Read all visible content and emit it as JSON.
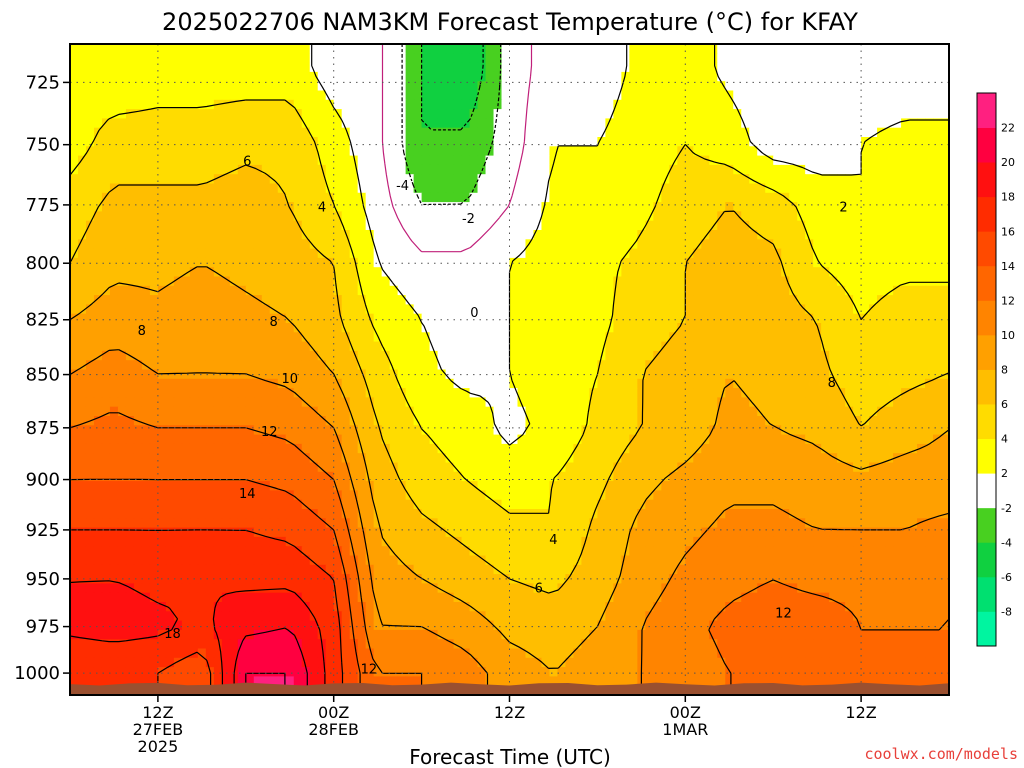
{
  "title": "2025022706 NAM3KM Forecast Temperature (°C) for KFAY",
  "credit": "coolwx.com/models",
  "colors": {
    "credit": "#e8403a",
    "ground": "#9a5030",
    "freezing_line": "#c0207a",
    "frame": "#000000",
    "grid": "#555555"
  },
  "chart_data": {
    "type": "heatmap",
    "title": "2025022706 NAM3KM Forecast Temperature (°C) for KFAY",
    "xlabel": "Forecast Time (UTC)",
    "ylabel": "",
    "x_units": "forecast hours from 2025-02-27 06Z",
    "xlim": [
      0,
      60
    ],
    "ylim": [
      1012,
      710
    ],
    "y_ticks": [
      725,
      750,
      775,
      800,
      825,
      850,
      875,
      900,
      925,
      950,
      975,
      1000
    ],
    "x_ticks": [
      {
        "hour": 6,
        "lines": [
          "12Z",
          "27FEB",
          "2025"
        ]
      },
      {
        "hour": 18,
        "lines": [
          "00Z",
          "28FEB"
        ]
      },
      {
        "hour": 30,
        "lines": [
          "12Z"
        ]
      },
      {
        "hour": 42,
        "lines": [
          "00Z",
          "1MAR"
        ]
      },
      {
        "hour": 54,
        "lines": [
          "12Z"
        ]
      }
    ],
    "grid": true,
    "colorbar": {
      "levels": [
        -10,
        -8,
        -6,
        -4,
        -2,
        2,
        4,
        6,
        8,
        10,
        12,
        14,
        16,
        18,
        20,
        22,
        24
      ],
      "labels": [
        "-8",
        "-6",
        "-4",
        "-2",
        "2",
        "4",
        "6",
        "8",
        "10",
        "12",
        "14",
        "16",
        "18",
        "20",
        "22"
      ],
      "colors": [
        "#00f5a0",
        "#00e070",
        "#10d040",
        "#48d020",
        "#ffffff",
        "#ffff00",
        "#ffdc00",
        "#ffbe00",
        "#ffa000",
        "#ff8400",
        "#ff6600",
        "#ff4a00",
        "#ff2c00",
        "#ff1010",
        "#ff0040",
        "#ff2080"
      ]
    },
    "pressure": [
      720,
      750,
      775,
      800,
      825,
      850,
      875,
      900,
      925,
      950,
      975,
      1000
    ],
    "hours": [
      0,
      3,
      6,
      9,
      12,
      15,
      18,
      21,
      24,
      27,
      30,
      33,
      36,
      39,
      42,
      45,
      48,
      51,
      54,
      57,
      60
    ],
    "temperature": [
      [
        3,
        2.5,
        3,
        3,
        3,
        3,
        1,
        0.5,
        -4,
        -6,
        -1,
        1,
        1,
        2.5,
        3,
        1.5,
        0.5,
        0.5,
        1,
        1,
        1
      ],
      [
        3,
        5,
        5,
        5,
        5.5,
        5.5,
        3,
        0.5,
        -4,
        -3.5,
        -1,
        2,
        2,
        3,
        4,
        3,
        1,
        1,
        2,
        2.5,
        2.5
      ],
      [
        5,
        6.5,
        6.5,
        6.5,
        7,
        6,
        4,
        1,
        -2,
        -2,
        0,
        2.5,
        2.5,
        3.5,
        5,
        6,
        5,
        3,
        2,
        3,
        3
      ],
      [
        6,
        7.5,
        7.5,
        8,
        7.5,
        7,
        6,
        2,
        0.5,
        0.5,
        2,
        3,
        3.5,
        4.5,
        6,
        7,
        6.5,
        4,
        3,
        3.5,
        3.5
      ],
      [
        8,
        9,
        8.5,
        9,
        8.5,
        8,
        6.5,
        3.5,
        2,
        1,
        2,
        3,
        3.5,
        5,
        6,
        7,
        7,
        6,
        4,
        5,
        5
      ],
      [
        10,
        11,
        10,
        10,
        10,
        9.5,
        8,
        5,
        2.5,
        1.5,
        2,
        3,
        4,
        6,
        7,
        8,
        7.5,
        6.5,
        5,
        5.5,
        6
      ],
      [
        12,
        12.5,
        12,
        12,
        12,
        11.5,
        10,
        6,
        4,
        3,
        1.5,
        2.5,
        4.5,
        6,
        7,
        8.5,
        8,
        7.5,
        6,
        7,
        8
      ],
      [
        14,
        14,
        14,
        14,
        14,
        13.5,
        12,
        7,
        5,
        4,
        3,
        4,
        5.5,
        7.5,
        8.5,
        9.5,
        9.5,
        9,
        8.5,
        9,
        9
      ],
      [
        16,
        16,
        16,
        16,
        16,
        15.5,
        14,
        8,
        6.5,
        5.5,
        4.5,
        4,
        6.5,
        8.5,
        9.5,
        10.5,
        10.5,
        10,
        10,
        10,
        10.5
      ],
      [
        18,
        18,
        17.5,
        18,
        17.5,
        17.5,
        16,
        9,
        8,
        7,
        6,
        5.5,
        7,
        9,
        10.5,
        11.5,
        12,
        11.5,
        11.5,
        11,
        12
      ],
      [
        18.5,
        19,
        18.5,
        17.5,
        19.5,
        20,
        17,
        10,
        10,
        9,
        7.5,
        7,
        8,
        10,
        11.5,
        12.5,
        13,
        13,
        12,
        12,
        12
      ],
      [
        16,
        16,
        16,
        14.5,
        22,
        22,
        17,
        12,
        12,
        11,
        9,
        8,
        9,
        10,
        11,
        12,
        12.5,
        12.5,
        12,
        12,
        12
      ]
    ],
    "contour_levels": [
      -4,
      -2,
      0,
      2,
      4,
      6,
      8,
      10,
      12,
      14,
      16,
      18,
      20,
      22
    ],
    "contour_labels": [
      {
        "text": "-4",
        "hour": 22.7,
        "p": 767
      },
      {
        "text": "-2",
        "hour": 27.2,
        "p": 781
      },
      {
        "text": "0",
        "hour": 27.6,
        "p": 822
      },
      {
        "text": "2",
        "hour": 52.8,
        "p": 776
      },
      {
        "text": "4",
        "hour": 17.2,
        "p": 776
      },
      {
        "text": "6",
        "hour": 12.1,
        "p": 757
      },
      {
        "text": "8",
        "hour": 4.9,
        "p": 830
      },
      {
        "text": "8",
        "hour": 13.9,
        "p": 826
      },
      {
        "text": "10",
        "hour": 15.0,
        "p": 852
      },
      {
        "text": "12",
        "hour": 13.6,
        "p": 877
      },
      {
        "text": "14",
        "hour": 12.1,
        "p": 907
      },
      {
        "text": "4",
        "hour": 33.0,
        "p": 930
      },
      {
        "text": "6",
        "hour": 32.0,
        "p": 955
      },
      {
        "text": "8",
        "hour": 52.0,
        "p": 854
      },
      {
        "text": "12",
        "hour": 48.7,
        "p": 968
      },
      {
        "text": "18",
        "hour": 7.0,
        "p": 979
      },
      {
        "text": "12",
        "hour": 20.4,
        "p": 998
      }
    ]
  }
}
